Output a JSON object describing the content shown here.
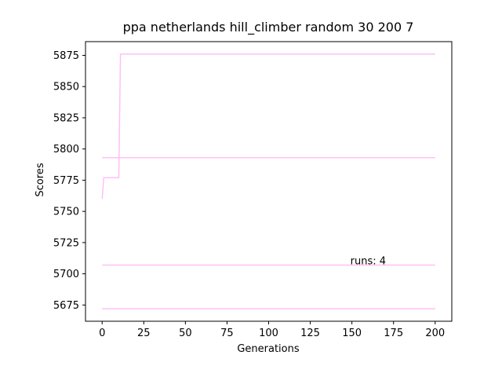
{
  "chart_data": {
    "type": "line",
    "title": "ppa netherlands hill_climber random 30 200 7",
    "xlabel": "Generations",
    "ylabel": "Scores",
    "xlim": [
      -10,
      210
    ],
    "ylim": [
      5662,
      5886
    ],
    "xticks": [
      0,
      25,
      50,
      75,
      100,
      125,
      150,
      175,
      200
    ],
    "yticks": [
      5675,
      5700,
      5725,
      5750,
      5775,
      5800,
      5825,
      5850,
      5875
    ],
    "grid": false,
    "line_color": "#ffc0f5",
    "annotation": {
      "text": "runs: 4",
      "x": 150,
      "y": 5707
    },
    "series": [
      {
        "x": [
          0,
          1,
          10,
          11,
          200
        ],
        "y": [
          5760,
          5777,
          5777,
          5876,
          5876
        ]
      },
      {
        "x": [
          0,
          200
        ],
        "y": [
          5793,
          5793
        ]
      },
      {
        "x": [
          0,
          200
        ],
        "y": [
          5707,
          5707
        ]
      },
      {
        "x": [
          0,
          200
        ],
        "y": [
          5672,
          5672
        ]
      }
    ]
  }
}
